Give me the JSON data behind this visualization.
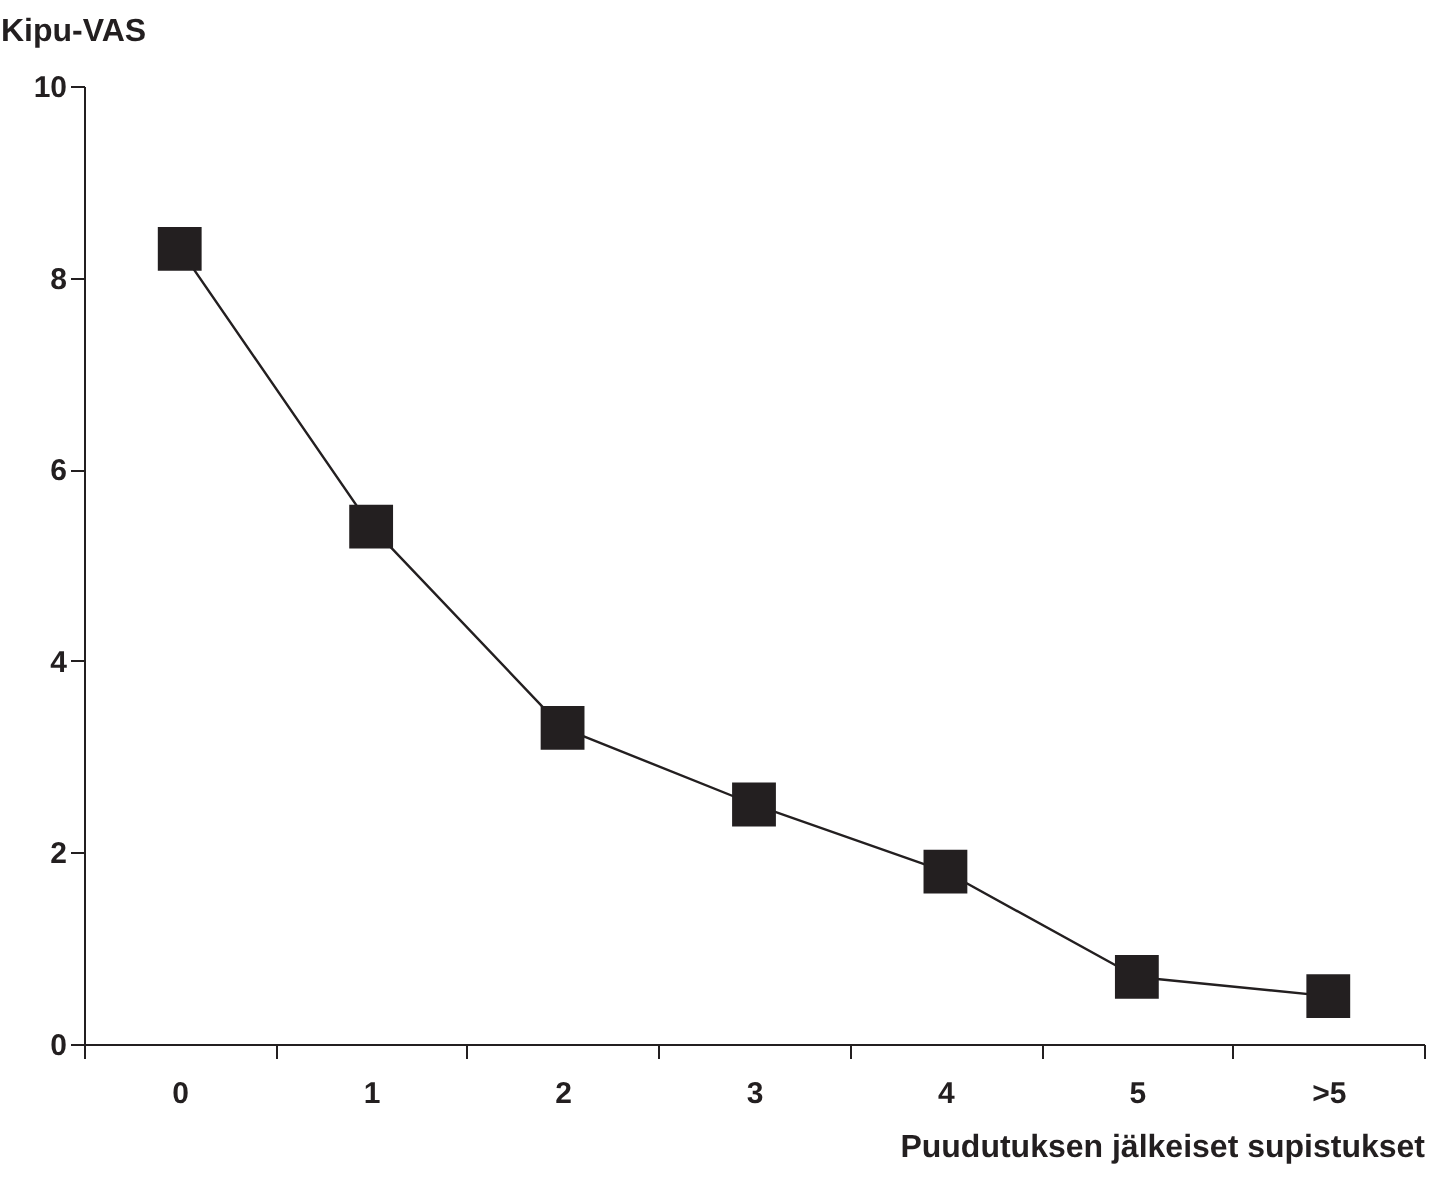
{
  "chart_data": {
    "type": "line",
    "xlabel": "Puudutuksen jälkeiset supistukset",
    "ylabel": "Kipu-VAS",
    "categories": [
      "0",
      "1",
      "2",
      "3",
      "4",
      "5",
      ">5"
    ],
    "series": [
      {
        "color": "#231f20",
        "values": [
          8.3,
          5.4,
          3.3,
          2.5,
          1.8,
          0.7,
          0.5
        ]
      }
    ],
    "ylim": [
      0,
      10
    ],
    "yticks": [
      0,
      2,
      4,
      6,
      8,
      10
    ],
    "grid": false,
    "legend": false,
    "marker": "square",
    "line_style": "solid"
  }
}
